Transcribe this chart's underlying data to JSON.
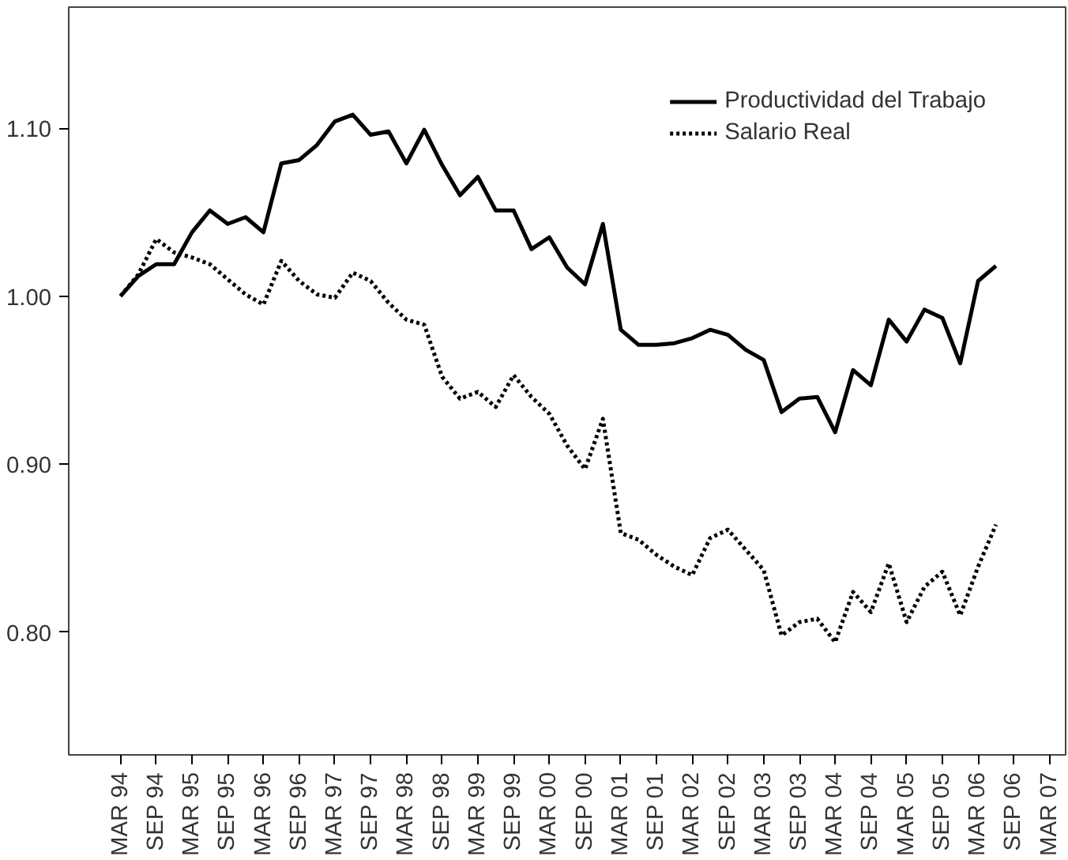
{
  "chart_data": {
    "type": "line",
    "categories": [
      "MAR 94",
      null,
      "SEP 94",
      null,
      "MAR 95",
      null,
      "SEP 95",
      null,
      "MAR 96",
      null,
      "SEP 96",
      null,
      "MAR 97",
      null,
      "SEP 97",
      null,
      "MAR 98",
      null,
      "SEP 98",
      null,
      "MAR 99",
      null,
      "SEP 99",
      null,
      "MAR 00",
      null,
      "SEP 00",
      null,
      "MAR 01",
      null,
      "SEP 01",
      null,
      "MAR 02",
      null,
      "SEP 02",
      null,
      "MAR 03",
      null,
      "SEP 03",
      null,
      "MAR 04",
      null,
      "SEP 04",
      null,
      "MAR 05",
      null,
      "SEP 05",
      null,
      "MAR 06",
      null,
      "SEP 06",
      null,
      "MAR 07"
    ],
    "series": [
      {
        "name": "Productividad del Trabajo",
        "color": "#000000",
        "line_style": "solid",
        "values": [
          1.0,
          1.012,
          1.019,
          1.019,
          1.038,
          1.051,
          1.043,
          1.047,
          1.038,
          1.079,
          1.081,
          1.09,
          1.104,
          1.108,
          1.096,
          1.098,
          1.079,
          1.099,
          1.078,
          1.06,
          1.071,
          1.051,
          1.051,
          1.028,
          1.035,
          1.017,
          1.007,
          1.043,
          0.98,
          0.971,
          0.971,
          0.972,
          0.975,
          0.98,
          0.977,
          0.968,
          0.962,
          0.931,
          0.939,
          0.94,
          0.919,
          0.956,
          0.947,
          0.986,
          0.973,
          0.992,
          0.987,
          0.96,
          1.009,
          1.018,
          null,
          null,
          null
        ]
      },
      {
        "name": "Salario Real",
        "color": "#000000",
        "line_style": "dashed",
        "values": [
          1.0,
          1.013,
          1.034,
          1.026,
          1.023,
          1.019,
          1.01,
          1.001,
          0.995,
          1.021,
          1.009,
          1.001,
          0.999,
          1.014,
          1.009,
          0.996,
          0.986,
          0.983,
          0.952,
          0.939,
          0.943,
          0.934,
          0.953,
          0.94,
          0.93,
          0.911,
          0.897,
          0.927,
          0.859,
          0.855,
          0.846,
          0.839,
          0.834,
          0.856,
          0.861,
          0.849,
          0.837,
          0.798,
          0.806,
          0.808,
          0.794,
          0.824,
          0.812,
          0.841,
          0.806,
          0.827,
          0.836,
          0.81,
          0.839,
          0.864,
          null,
          null,
          null
        ]
      }
    ],
    "ylim": [
      0.727,
      1.172
    ],
    "yticks": [
      {
        "value": 0.8,
        "label": "0.80"
      },
      {
        "value": 0.9,
        "label": "0.90"
      },
      {
        "value": 1.0,
        "label": "1.00"
      },
      {
        "value": 1.1,
        "label": "1.10"
      }
    ],
    "grid": false,
    "legend": "top right"
  }
}
